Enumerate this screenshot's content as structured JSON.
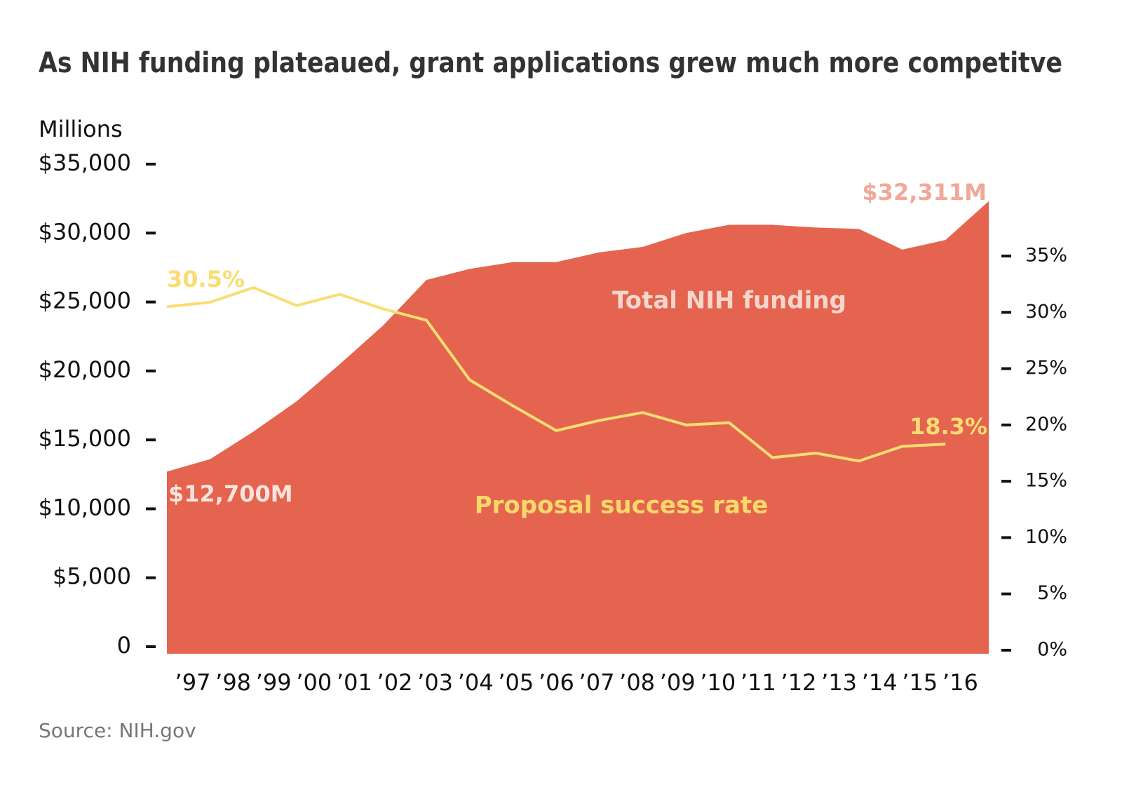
{
  "chart_data": {
    "type": "area",
    "title": "As NIH funding plateaued, grant applications grew much more competitve",
    "y_axis_label": "Millions",
    "source": "Source: NIH.gov",
    "categories": [
      "’97",
      "’98",
      "’99",
      "’00",
      "’01",
      "’02",
      "’03",
      "’04",
      "’05",
      "’06",
      "’07",
      "’08",
      "’09",
      "’10",
      "’11",
      "’12",
      "’13",
      "’14",
      "’15",
      "’16"
    ],
    "series": [
      {
        "name": "Total NIH funding",
        "type": "area",
        "color": "#e4644f",
        "values": [
          12700,
          13600,
          15600,
          17800,
          20500,
          23300,
          26600,
          27400,
          27900,
          27900,
          28600,
          29000,
          30000,
          30600,
          30600,
          30400,
          30300,
          28800,
          29500,
          32311
        ],
        "value_labels": [
          "$12,700M",
          null,
          null,
          null,
          null,
          null,
          null,
          null,
          null,
          null,
          null,
          null,
          null,
          null,
          null,
          null,
          null,
          null,
          null,
          "$32,311M"
        ]
      },
      {
        "name": "Proposal success rate",
        "type": "line",
        "axis": "y2",
        "color": "#f9dd72",
        "values": [
          30.5,
          30.9,
          32.2,
          30.6,
          31.6,
          30.3,
          29.3,
          24.0,
          21.7,
          19.5,
          20.4,
          21.1,
          20.0,
          20.2,
          17.1,
          17.5,
          16.8,
          18.1,
          18.3,
          null
        ],
        "value_labels": [
          "30.5%",
          null,
          null,
          null,
          null,
          null,
          null,
          null,
          null,
          null,
          null,
          null,
          null,
          null,
          null,
          null,
          null,
          null,
          "18.3%",
          null
        ]
      }
    ],
    "ylim": [
      0,
      35000
    ],
    "yticks": [
      {
        "value": 0,
        "label": "0"
      },
      {
        "value": 5000,
        "label": "$5,000"
      },
      {
        "value": 10000,
        "label": "$10,000"
      },
      {
        "value": 15000,
        "label": "$15,000"
      },
      {
        "value": 20000,
        "label": "$20,000"
      },
      {
        "value": 25000,
        "label": "$25,000"
      },
      {
        "value": 30000,
        "label": "$30,000"
      },
      {
        "value": 35000,
        "label": "$35,000"
      }
    ],
    "y2lim": [
      0,
      35
    ],
    "y2ticks": [
      {
        "value": 0,
        "label": "0%"
      },
      {
        "value": 5,
        "label": "5%"
      },
      {
        "value": 10,
        "label": "10%"
      },
      {
        "value": 15,
        "label": "15%"
      },
      {
        "value": 20,
        "label": "20%"
      },
      {
        "value": 25,
        "label": "25%"
      },
      {
        "value": 30,
        "label": "30%"
      },
      {
        "value": 35,
        "label": "35%"
      }
    ],
    "grid": false
  }
}
